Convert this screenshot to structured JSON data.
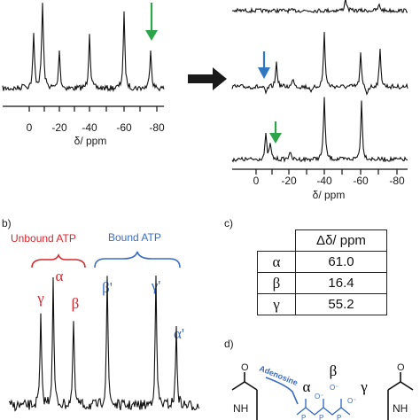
{
  "panel_a": {
    "spectrum_left": {
      "xlabel": "δ/ ppm",
      "ticks": [
        "0",
        "-20",
        "-40",
        "-60",
        "-80"
      ]
    },
    "spectra_right": {
      "xlabel": "δ/ ppm",
      "ticks": [
        "0",
        "-20",
        "-40",
        "-60",
        "-80"
      ]
    },
    "arrow_colors": {
      "green": "#2ea44a",
      "blue": "#2f77c0",
      "black": "#1a1a1a"
    }
  },
  "panel_b": {
    "label": "b)",
    "unbound_label": "Unbound ATP",
    "bound_label": "Bound ATP",
    "unbound_alpha": "α",
    "unbound_gamma": "γ",
    "unbound_beta": "β",
    "bound_beta": "β'",
    "bound_gamma": "γ'",
    "bound_alpha": "α'",
    "colors": {
      "unbound": "#d9262c",
      "bound": "#3b6cc4"
    }
  },
  "panel_c": {
    "label": "c)",
    "header": "Δδ/ ppm",
    "rows": [
      {
        "symbol": "α",
        "value": "61.0"
      },
      {
        "symbol": "β",
        "value": "16.4"
      },
      {
        "symbol": "γ",
        "value": "55.2"
      }
    ]
  },
  "panel_d": {
    "label": "d)",
    "adenosine": "Adenosine",
    "alpha": "α",
    "beta": "β",
    "gamma": "γ",
    "nh_left": "NH",
    "nh_right": "NH",
    "o_minus": "O⁻",
    "o": "O",
    "p": "P"
  }
}
